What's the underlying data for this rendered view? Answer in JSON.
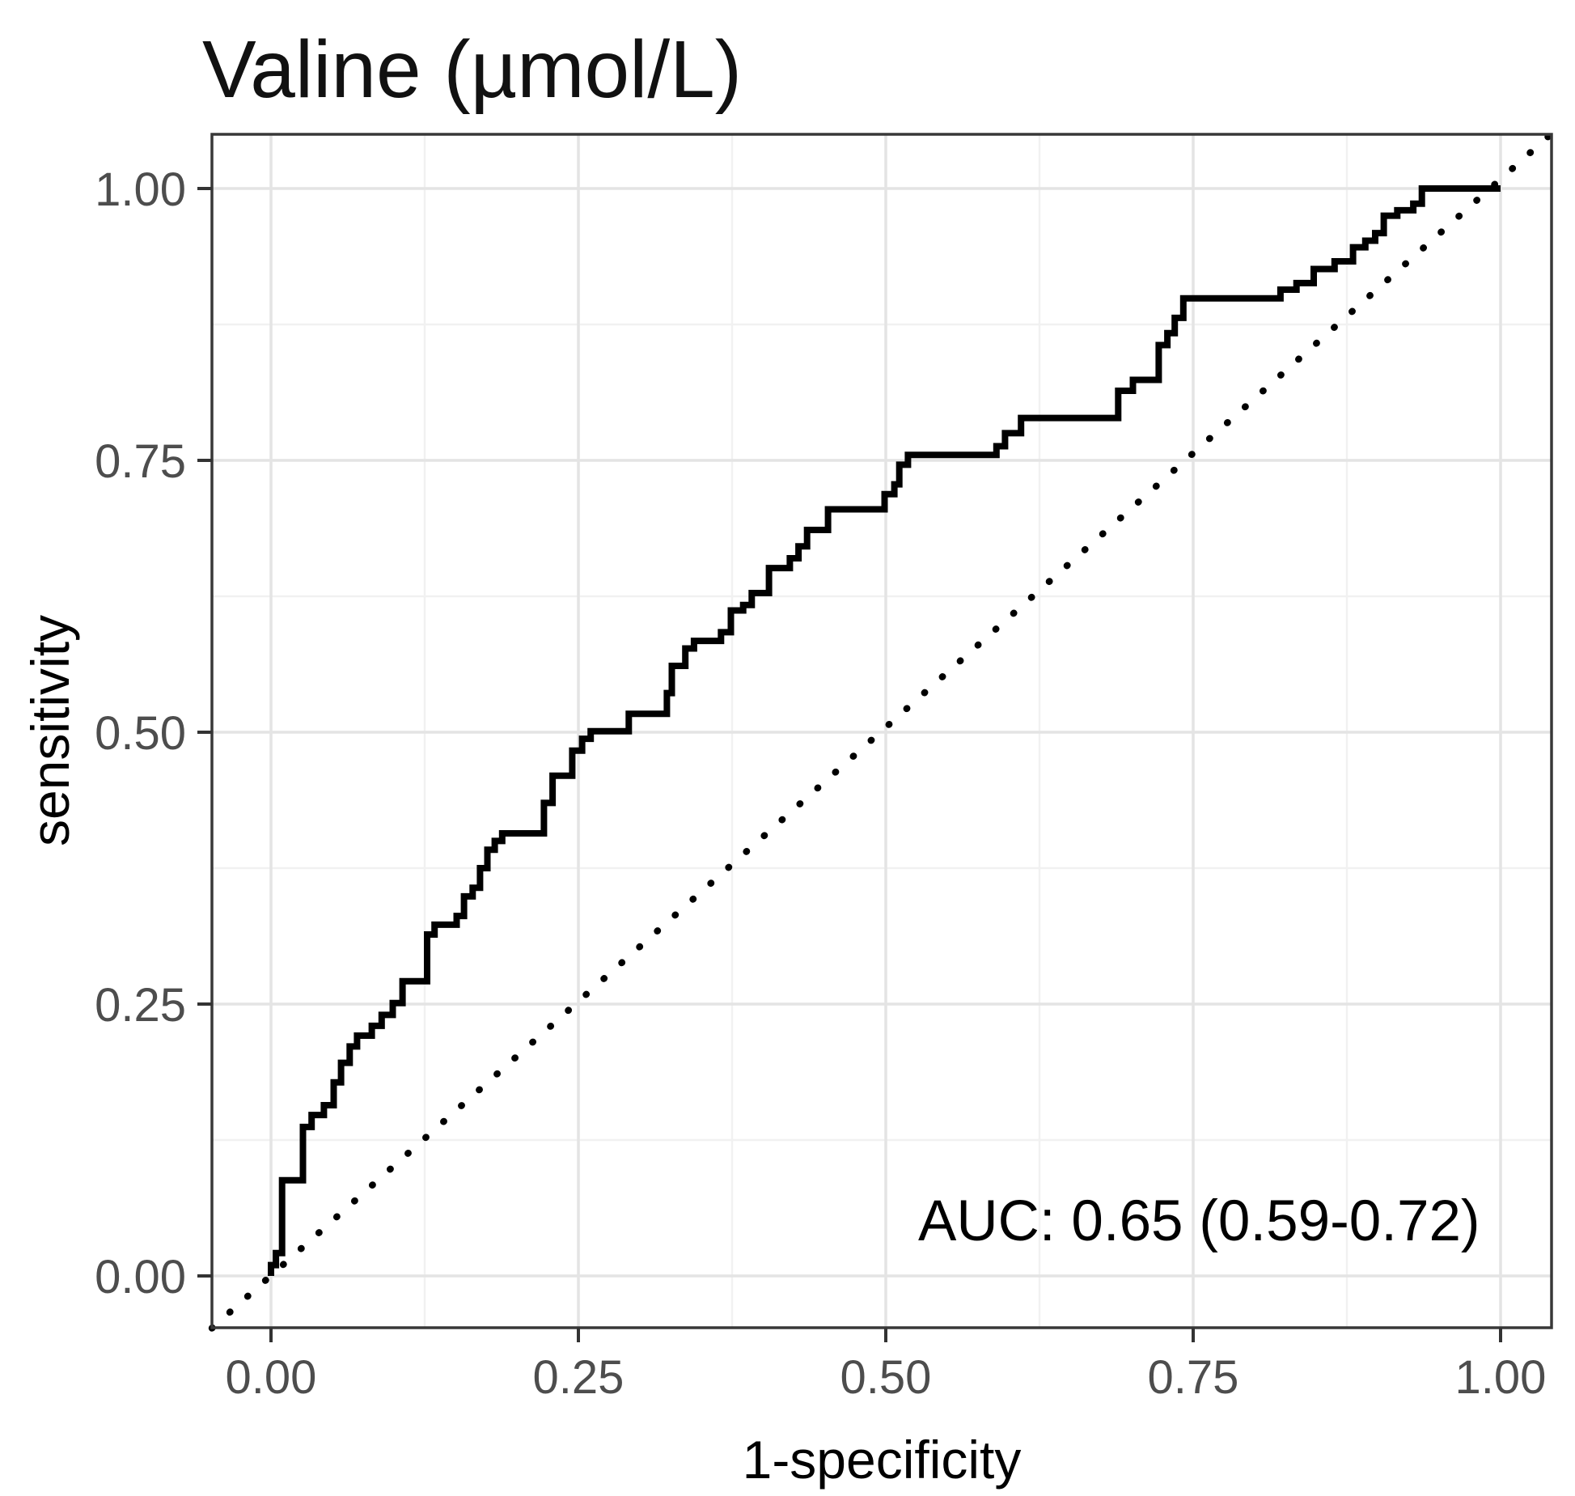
{
  "colors": {
    "background": "#ffffff",
    "curve": "#000000",
    "diagonal": "#000000",
    "major_grid": "#e4e4e4",
    "minor_grid": "#f1f1f1",
    "panel_border": "#383838",
    "tick_mark": "#333333",
    "tick_label": "#4d4d4d",
    "title_text": "#111111"
  },
  "chart_data": {
    "type": "line",
    "title": "Valine (µmol/L)",
    "xlabel": "1-specificity",
    "ylabel": "sensitivity",
    "xlim": [
      0,
      1
    ],
    "ylim": [
      0,
      1
    ],
    "xlim_display": [
      -0.048,
      1.041
    ],
    "ylim_display": [
      -0.048,
      1.05
    ],
    "grid": "major and minor, light gray, theme_bw",
    "legend_position": "none",
    "xticks": {
      "values": [
        0,
        0.25,
        0.5,
        0.75,
        1
      ],
      "labels": [
        "0.00",
        "0.25",
        "0.50",
        "0.75",
        "1.00"
      ]
    },
    "yticks": {
      "values": [
        0,
        0.25,
        0.5,
        0.75,
        1
      ],
      "labels": [
        "0.00",
        "0.25",
        "0.50",
        "0.75",
        "1.00"
      ]
    },
    "minor_ticks": [
      0.125,
      0.375,
      0.625,
      0.875
    ],
    "annotation": {
      "text": "AUC: 0.65 (0.59-0.72)",
      "x": 0.527,
      "y": 0.033
    },
    "series": [
      {
        "name": "ROC step curve",
        "style": "solid",
        "key": "roc_curve"
      },
      {
        "name": "chance reference line",
        "style": "dotted",
        "key": "diagonal"
      }
    ],
    "diagonal": [
      [
        -0.048,
        -0.048
      ],
      [
        1.041,
        1.05
      ]
    ],
    "roc_curve": [
      [
        0.0,
        0.0
      ],
      [
        0.0,
        0.01
      ],
      [
        0.004,
        0.01
      ],
      [
        0.004,
        0.021
      ],
      [
        0.009,
        0.021
      ],
      [
        0.009,
        0.088
      ],
      [
        0.026,
        0.088
      ],
      [
        0.026,
        0.137
      ],
      [
        0.033,
        0.137
      ],
      [
        0.033,
        0.148
      ],
      [
        0.043,
        0.148
      ],
      [
        0.043,
        0.157
      ],
      [
        0.051,
        0.157
      ],
      [
        0.051,
        0.178
      ],
      [
        0.057,
        0.178
      ],
      [
        0.057,
        0.196
      ],
      [
        0.064,
        0.196
      ],
      [
        0.064,
        0.211
      ],
      [
        0.07,
        0.211
      ],
      [
        0.07,
        0.221
      ],
      [
        0.082,
        0.221
      ],
      [
        0.082,
        0.23
      ],
      [
        0.09,
        0.23
      ],
      [
        0.09,
        0.24
      ],
      [
        0.099,
        0.24
      ],
      [
        0.099,
        0.251
      ],
      [
        0.107,
        0.251
      ],
      [
        0.107,
        0.271
      ],
      [
        0.127,
        0.271
      ],
      [
        0.127,
        0.314
      ],
      [
        0.133,
        0.314
      ],
      [
        0.133,
        0.323
      ],
      [
        0.151,
        0.323
      ],
      [
        0.151,
        0.331
      ],
      [
        0.157,
        0.331
      ],
      [
        0.157,
        0.349
      ],
      [
        0.164,
        0.349
      ],
      [
        0.164,
        0.357
      ],
      [
        0.17,
        0.357
      ],
      [
        0.17,
        0.375
      ],
      [
        0.176,
        0.375
      ],
      [
        0.176,
        0.392
      ],
      [
        0.182,
        0.392
      ],
      [
        0.182,
        0.4
      ],
      [
        0.188,
        0.4
      ],
      [
        0.188,
        0.407
      ],
      [
        0.222,
        0.407
      ],
      [
        0.222,
        0.435
      ],
      [
        0.229,
        0.435
      ],
      [
        0.229,
        0.46
      ],
      [
        0.245,
        0.46
      ],
      [
        0.245,
        0.483
      ],
      [
        0.253,
        0.483
      ],
      [
        0.253,
        0.494
      ],
      [
        0.26,
        0.494
      ],
      [
        0.26,
        0.501
      ],
      [
        0.291,
        0.501
      ],
      [
        0.291,
        0.517
      ],
      [
        0.322,
        0.517
      ],
      [
        0.322,
        0.536
      ],
      [
        0.326,
        0.536
      ],
      [
        0.326,
        0.561
      ],
      [
        0.337,
        0.561
      ],
      [
        0.337,
        0.577
      ],
      [
        0.344,
        0.577
      ],
      [
        0.344,
        0.584
      ],
      [
        0.366,
        0.584
      ],
      [
        0.366,
        0.592
      ],
      [
        0.374,
        0.592
      ],
      [
        0.374,
        0.612
      ],
      [
        0.384,
        0.612
      ],
      [
        0.384,
        0.617
      ],
      [
        0.391,
        0.617
      ],
      [
        0.391,
        0.628
      ],
      [
        0.405,
        0.628
      ],
      [
        0.405,
        0.651
      ],
      [
        0.422,
        0.651
      ],
      [
        0.422,
        0.66
      ],
      [
        0.429,
        0.66
      ],
      [
        0.429,
        0.671
      ],
      [
        0.436,
        0.671
      ],
      [
        0.436,
        0.686
      ],
      [
        0.453,
        0.686
      ],
      [
        0.453,
        0.705
      ],
      [
        0.499,
        0.705
      ],
      [
        0.499,
        0.719
      ],
      [
        0.507,
        0.719
      ],
      [
        0.507,
        0.728
      ],
      [
        0.511,
        0.728
      ],
      [
        0.511,
        0.746
      ],
      [
        0.518,
        0.746
      ],
      [
        0.518,
        0.755
      ],
      [
        0.59,
        0.755
      ],
      [
        0.59,
        0.763
      ],
      [
        0.597,
        0.763
      ],
      [
        0.597,
        0.775
      ],
      [
        0.61,
        0.775
      ],
      [
        0.61,
        0.789
      ],
      [
        0.689,
        0.789
      ],
      [
        0.689,
        0.814
      ],
      [
        0.701,
        0.814
      ],
      [
        0.701,
        0.824
      ],
      [
        0.722,
        0.824
      ],
      [
        0.722,
        0.856
      ],
      [
        0.729,
        0.856
      ],
      [
        0.729,
        0.867
      ],
      [
        0.735,
        0.867
      ],
      [
        0.735,
        0.881
      ],
      [
        0.742,
        0.881
      ],
      [
        0.742,
        0.899
      ],
      [
        0.821,
        0.899
      ],
      [
        0.821,
        0.907
      ],
      [
        0.834,
        0.907
      ],
      [
        0.834,
        0.913
      ],
      [
        0.848,
        0.913
      ],
      [
        0.848,
        0.926
      ],
      [
        0.865,
        0.926
      ],
      [
        0.865,
        0.933
      ],
      [
        0.88,
        0.933
      ],
      [
        0.88,
        0.946
      ],
      [
        0.89,
        0.946
      ],
      [
        0.89,
        0.952
      ],
      [
        0.898,
        0.952
      ],
      [
        0.898,
        0.959
      ],
      [
        0.905,
        0.959
      ],
      [
        0.905,
        0.975
      ],
      [
        0.916,
        0.975
      ],
      [
        0.916,
        0.98
      ],
      [
        0.929,
        0.98
      ],
      [
        0.929,
        0.986
      ],
      [
        0.936,
        0.986
      ],
      [
        0.936,
        1.0
      ],
      [
        1.0,
        1.0
      ]
    ]
  }
}
